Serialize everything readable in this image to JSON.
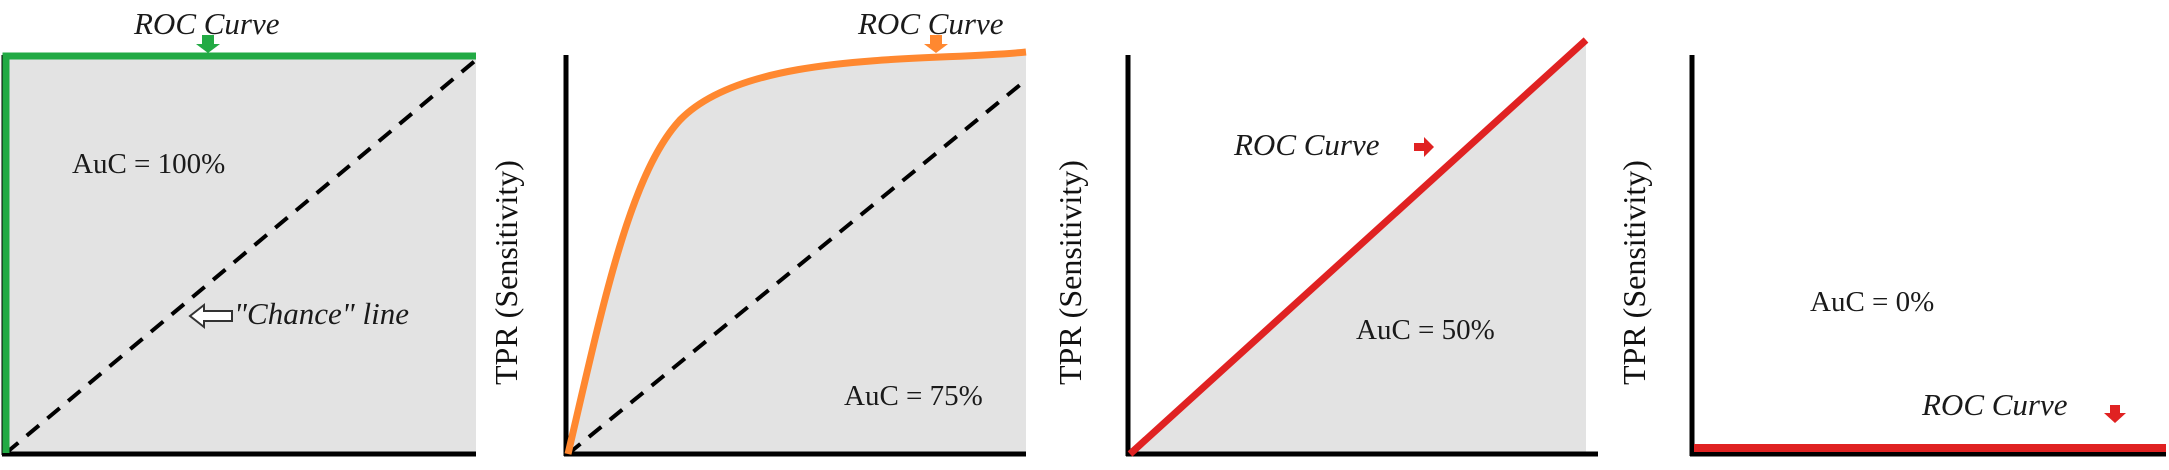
{
  "panels": [
    {
      "auc_label": "AuC = 100%",
      "roc_label": "ROC Curve",
      "chance_label": "\"Chance\" line",
      "color": "#22aa44"
    },
    {
      "auc_label": "AuC = 75%",
      "roc_label": "ROC Curve",
      "ylabel": "TPR (Sensitivity)",
      "color": "#ff8830"
    },
    {
      "auc_label": "AuC = 50%",
      "roc_label": "ROC Curve",
      "ylabel": "TPR (Sensitivity)",
      "color": "#e02222"
    },
    {
      "auc_label": "AuC = 0%",
      "roc_label": "ROC Curve",
      "ylabel": "TPR (Sensitivity)",
      "color": "#e02222"
    }
  ],
  "colors": {
    "fill": "#e3e3e3",
    "axis": "#000000",
    "chance_line": "#000000"
  }
}
